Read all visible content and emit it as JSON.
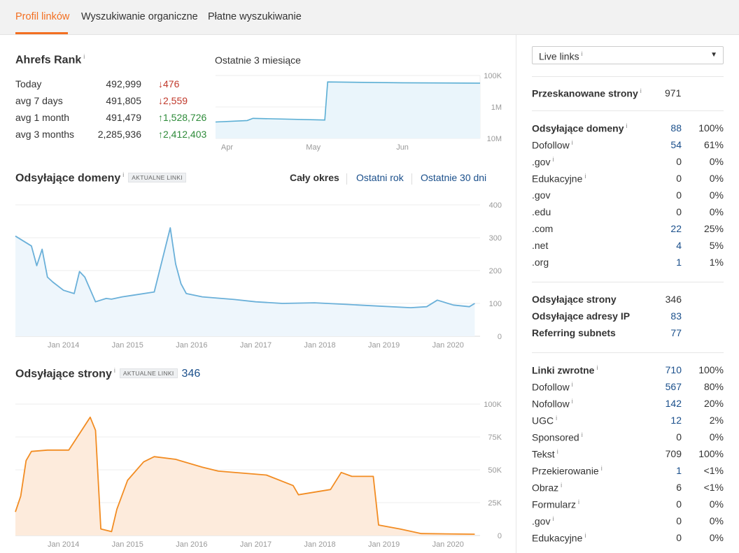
{
  "tabs": [
    {
      "label": "Profil linków",
      "active": true
    },
    {
      "label": "Wyszukiwanie organiczne",
      "active": false
    },
    {
      "label": "Płatne wyszukiwanie",
      "active": false
    }
  ],
  "info_glyph": "i",
  "ahrefs_rank": {
    "title": "Ahrefs Rank",
    "rows": [
      {
        "label": "Today",
        "value": "492,999",
        "change": "476",
        "direction": "down"
      },
      {
        "label": "avg 7 days",
        "value": "491,805",
        "change": "2,559",
        "direction": "down"
      },
      {
        "label": "avg 1 month",
        "value": "491,479",
        "change": "1,528,726",
        "direction": "up"
      },
      {
        "label": "avg 3 months",
        "value": "2,285,936",
        "change": "2,412,403",
        "direction": "up"
      }
    ],
    "arrow_down": "↓",
    "arrow_up": "↑"
  },
  "mini_chart": {
    "title": "Ostatnie 3 miesiące",
    "x_ticks": [
      "Apr",
      "May",
      "Jun"
    ],
    "y_ticks": [
      "100K",
      "1M",
      "10M"
    ],
    "color": "#5aaed4"
  },
  "domains_section": {
    "title": "Odsyłające domeny",
    "badge": "AKTUALNE LINKI",
    "periods": [
      {
        "label": "Cały okres",
        "active": true
      },
      {
        "label": "Ostatni rok",
        "active": false
      },
      {
        "label": "Ostatnie 30 dni",
        "active": false
      }
    ]
  },
  "pages_section": {
    "title": "Odsyłające strony",
    "badge": "AKTUALNE LINKI",
    "count": "346"
  },
  "chart_data": [
    {
      "type": "line",
      "title": "Ostatnie 3 miesiące",
      "x_ticks": [
        "Apr",
        "May",
        "Jun"
      ],
      "y_ticks": [
        "100K",
        "1M",
        "10M"
      ],
      "y_scale": "log, reversed (rank)",
      "x": [
        "2020-03-28",
        "2020-04-08",
        "2020-04-10",
        "2020-05-05",
        "2020-05-06",
        "2020-06-01",
        "2020-06-28"
      ],
      "values": [
        3000000,
        2700000,
        2300000,
        2600000,
        160000,
        170000,
        175000
      ],
      "color": "#5aaed4"
    },
    {
      "type": "area",
      "title": "Odsyłające domeny",
      "x_ticks": [
        "Jan 2014",
        "Jan 2015",
        "Jan 2016",
        "Jan 2017",
        "Jan 2018",
        "Jan 2019",
        "Jan 2020"
      ],
      "y_ticks": [
        "400",
        "300",
        "200",
        "100",
        "0"
      ],
      "ylim": [
        0,
        400
      ],
      "grid": true,
      "color": "#6ab0d9",
      "x": [
        "2013-04",
        "2013-07",
        "2013-08",
        "2013-09",
        "2013-10",
        "2013-11",
        "2014-01",
        "2014-03",
        "2014-04",
        "2014-05",
        "2014-07",
        "2014-09",
        "2014-10",
        "2014-12",
        "2015-02",
        "2015-06",
        "2015-09",
        "2015-10",
        "2015-11",
        "2015-12",
        "2016-03",
        "2016-09",
        "2017-01",
        "2017-06",
        "2017-12",
        "2018-06",
        "2018-12",
        "2019-06",
        "2019-09",
        "2019-11",
        "2020-02",
        "2020-05",
        "2020-06"
      ],
      "values": [
        305,
        275,
        215,
        265,
        180,
        165,
        140,
        130,
        197,
        180,
        105,
        115,
        113,
        120,
        125,
        135,
        330,
        220,
        160,
        130,
        120,
        112,
        105,
        100,
        102,
        97,
        92,
        87,
        90,
        110,
        95,
        90,
        100
      ]
    },
    {
      "type": "area",
      "title": "Odsyłające strony",
      "x_ticks": [
        "Jan 2014",
        "Jan 2015",
        "Jan 2016",
        "Jan 2017",
        "Jan 2018",
        "Jan 2019",
        "Jan 2020"
      ],
      "y_ticks": [
        "100K",
        "75K",
        "50K",
        "25K",
        "0"
      ],
      "ylim": [
        0,
        100000
      ],
      "grid": true,
      "color": "#f28c22",
      "x": [
        "2013-04",
        "2013-05",
        "2013-06",
        "2013-07",
        "2013-10",
        "2014-02",
        "2014-06",
        "2014-07",
        "2014-08",
        "2014-10",
        "2014-11",
        "2015-01",
        "2015-04",
        "2015-06",
        "2015-10",
        "2016-03",
        "2016-06",
        "2017-03",
        "2017-08",
        "2017-09",
        "2018-03",
        "2018-05",
        "2018-07",
        "2018-11",
        "2018-12",
        "2019-04",
        "2019-08",
        "2020-06"
      ],
      "values": [
        18000,
        30000,
        57000,
        64000,
        65000,
        65000,
        90000,
        80000,
        5000,
        3000,
        20000,
        42000,
        56000,
        60000,
        58000,
        52000,
        49000,
        46000,
        38000,
        31000,
        35000,
        48000,
        45000,
        45000,
        8000,
        5000,
        1500,
        1000
      ]
    }
  ],
  "right_panel": {
    "select_value": "Live links",
    "crawled": {
      "label": "Przeskanowane strony",
      "value": "971"
    },
    "domains": {
      "header": {
        "label": "Odsyłające domeny",
        "count": "88",
        "pct": "100%"
      },
      "rows": [
        {
          "label": "Dofollow",
          "info": true,
          "count": "54",
          "pct": "61%",
          "link": true
        },
        {
          "label": ".gov",
          "info": true,
          "count": "0",
          "pct": "0%",
          "link": false
        },
        {
          "label": "Edukacyjne",
          "info": true,
          "count": "0",
          "pct": "0%",
          "link": false
        },
        {
          "label": ".gov",
          "info": false,
          "count": "0",
          "pct": "0%",
          "link": false
        },
        {
          "label": ".edu",
          "info": false,
          "count": "0",
          "pct": "0%",
          "link": false
        },
        {
          "label": ".com",
          "info": false,
          "count": "22",
          "pct": "25%",
          "link": true
        },
        {
          "label": ".net",
          "info": false,
          "count": "4",
          "pct": "5%",
          "link": true
        },
        {
          "label": ".org",
          "info": false,
          "count": "1",
          "pct": "1%",
          "link": true
        }
      ]
    },
    "ips": [
      {
        "label": "Odsyłające strony",
        "count": "346",
        "link": false
      },
      {
        "label": "Odsyłające adresy IP",
        "count": "83",
        "link": true
      },
      {
        "label": "Referring subnets",
        "count": "77",
        "link": true
      }
    ],
    "backlinks": {
      "header": {
        "label": "Linki zwrotne",
        "count": "710",
        "pct": "100%"
      },
      "rows": [
        {
          "label": "Dofollow",
          "info": true,
          "count": "567",
          "pct": "80%",
          "link": true
        },
        {
          "label": "Nofollow",
          "info": true,
          "count": "142",
          "pct": "20%",
          "link": true
        },
        {
          "label": "UGC",
          "info": true,
          "count": "12",
          "pct": "2%",
          "link": true
        },
        {
          "label": "Sponsored",
          "info": true,
          "count": "0",
          "pct": "0%",
          "link": false
        },
        {
          "label": "Tekst",
          "info": true,
          "count": "709",
          "pct": "100%",
          "link": false
        },
        {
          "label": "Przekierowanie",
          "info": true,
          "count": "1",
          "pct": "<1%",
          "link": true
        },
        {
          "label": "Obraz",
          "info": true,
          "count": "6",
          "pct": "<1%",
          "link": false
        },
        {
          "label": "Formularz",
          "info": true,
          "count": "0",
          "pct": "0%",
          "link": false
        },
        {
          "label": ".gov",
          "info": true,
          "count": "0",
          "pct": "0%",
          "link": false
        },
        {
          "label": "Edukacyjne",
          "info": true,
          "count": "0",
          "pct": "0%",
          "link": false
        }
      ]
    }
  }
}
